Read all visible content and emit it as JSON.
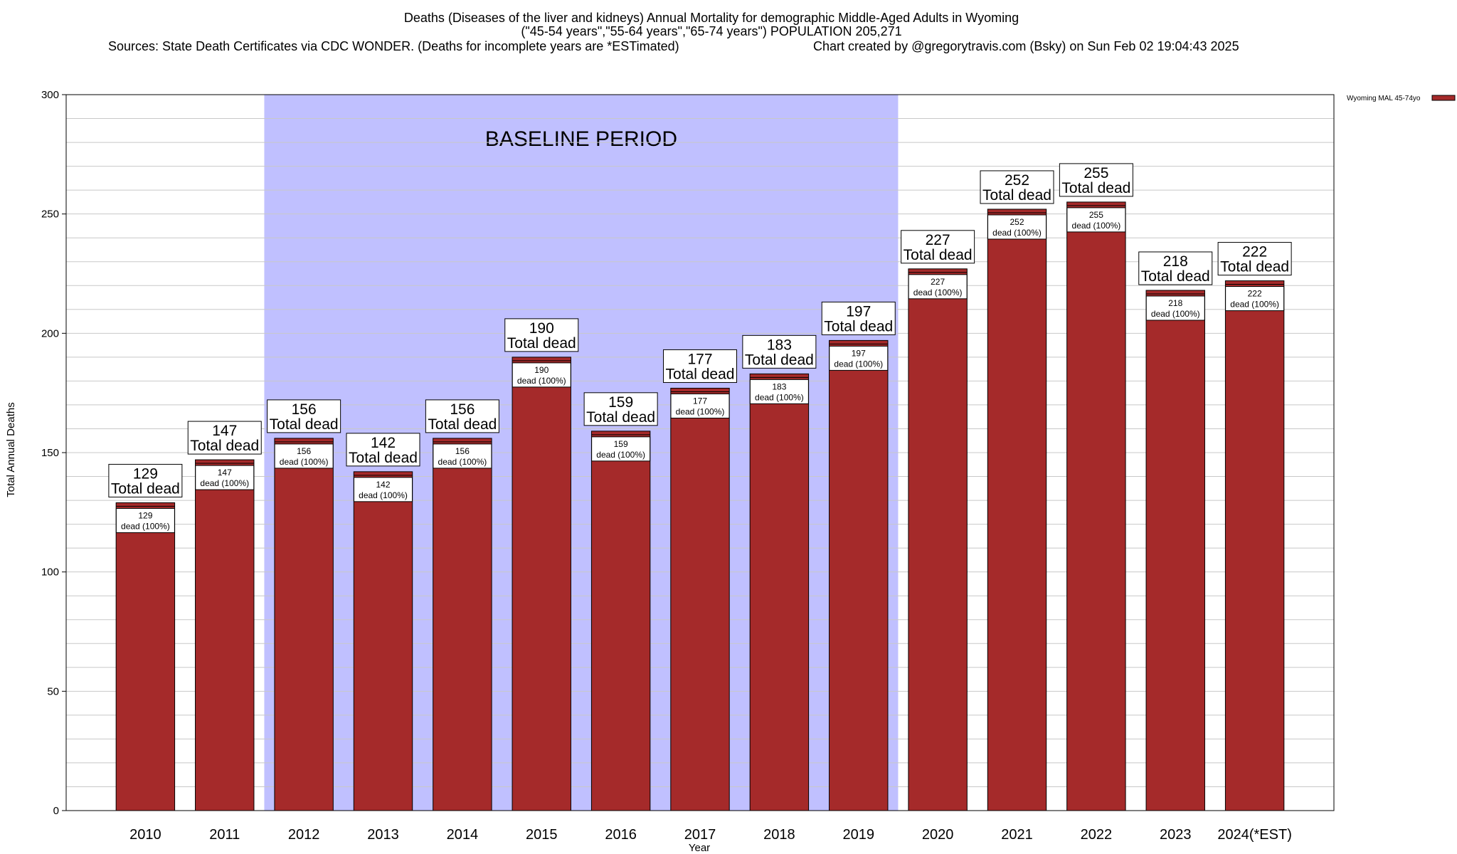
{
  "header": {
    "title_line1": "Deaths (Diseases of the liver and kidneys) Annual Mortality for demographic Middle-Aged Adults in Wyoming",
    "title_line2": "(\"45-54 years\",\"55-64 years\",\"65-74 years\") POPULATION 205,271",
    "sources": "Sources: State Death Certificates via CDC WONDER. (Deaths for incomplete years are *ESTimated)",
    "credit": "Chart created by @gregorytravis.com (Bsky) on Sun Feb 02 19:04:43 2025"
  },
  "baseline": {
    "label": "BASELINE PERIOD",
    "start": "2012",
    "end": "2019",
    "color": "#c0c0ff"
  },
  "labels": {
    "total_dead": "Total dead",
    "dead_pct": "dead (100%)"
  },
  "chart_data": {
    "type": "bar",
    "xlabel": "Year",
    "ylabel": "Total Annual Deaths",
    "ylim": [
      0,
      300
    ],
    "yticks": [
      0,
      50,
      100,
      150,
      200,
      250,
      300
    ],
    "grid": true,
    "legend_position": "top-right",
    "categories": [
      "2010",
      "2011",
      "2012",
      "2013",
      "2014",
      "2015",
      "2016",
      "2017",
      "2018",
      "2019",
      "2020",
      "2021",
      "2022",
      "2023",
      "2024(*EST)"
    ],
    "series": [
      {
        "name": "Wyoming MAL 45-74yo",
        "color": "#a52a2a",
        "values": [
          129,
          147,
          156,
          142,
          156,
          190,
          159,
          177,
          183,
          197,
          227,
          252,
          255,
          218,
          222
        ]
      }
    ]
  }
}
